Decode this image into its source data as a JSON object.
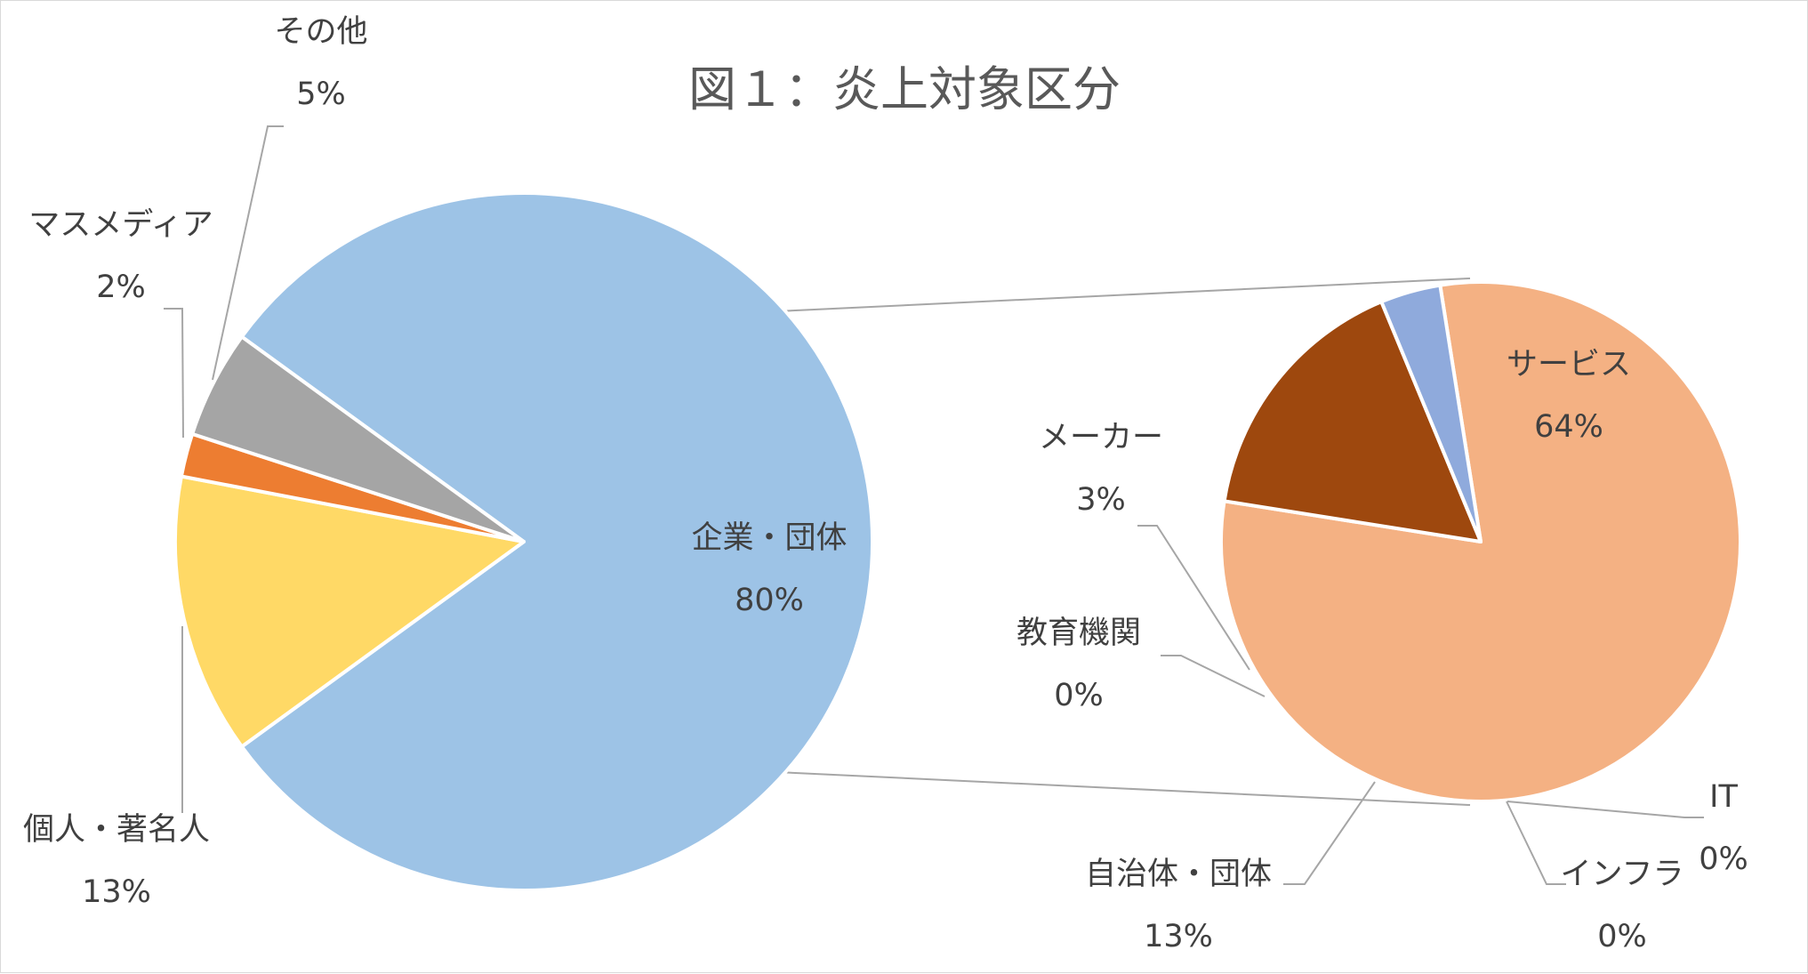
{
  "chart_data": {
    "type": "pie",
    "subtype": "pie-of-pie",
    "title": "図１：炎上対象区分",
    "main": {
      "slices": [
        {
          "name": "企業・団体",
          "value": 80,
          "label": "80%",
          "color": "#9dc3e6"
        },
        {
          "name": "個人・著名人",
          "value": 13,
          "label": "13%",
          "color": "#ffd966"
        },
        {
          "name": "マスメディア",
          "value": 2,
          "label": "2%",
          "color": "#ed7d31"
        },
        {
          "name": "その他",
          "value": 5,
          "label": "5%",
          "color": "#a5a5a5"
        }
      ]
    },
    "secondary": {
      "slices": [
        {
          "name": "サービス",
          "value": 64,
          "label": "64%",
          "color": "#f4b183"
        },
        {
          "name": "IT",
          "value": 0,
          "label": "0%",
          "color": "#5b9bd5"
        },
        {
          "name": "インフラ",
          "value": 0,
          "label": "0%",
          "color": "#70ad47"
        },
        {
          "name": "自治体・団体",
          "value": 13,
          "label": "13%",
          "color": "#9e480e"
        },
        {
          "name": "教育機関",
          "value": 0,
          "label": "0%",
          "color": "#636363"
        },
        {
          "name": "メーカー",
          "value": 3,
          "label": "3%",
          "color": "#8faadc"
        }
      ]
    },
    "legend": "none",
    "grid": false
  }
}
